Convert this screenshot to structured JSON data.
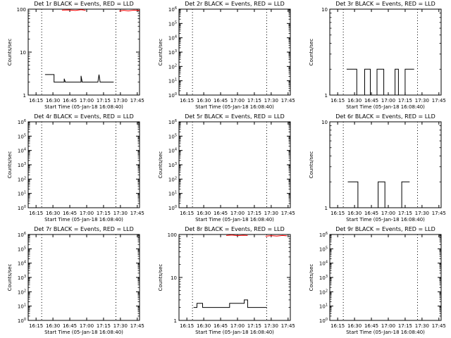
{
  "colors": {
    "events": "#000000",
    "lld": "#ff0000",
    "axes": "#000000"
  },
  "chart_data": [
    {
      "id": "det1",
      "type": "line",
      "title": "Det 1r BLACK = Events, RED = LLD",
      "xlabel": "Start Time (05-Jan-18 16:08:40)",
      "ylabel": "Counts/sec",
      "yscale": "log",
      "ylim": [
        1,
        100
      ],
      "xlim": [
        "16:08",
        "17:47"
      ],
      "yticks": [
        {
          "v": 1,
          "label": "1"
        },
        {
          "v": 10,
          "label": "10"
        },
        {
          "v": 100,
          "label": "100"
        }
      ],
      "xticks": [
        "16:15",
        "16:30",
        "16:45",
        "17:00",
        "17:15",
        "17:30",
        "17:45"
      ],
      "dotted_lines": [
        "16:20",
        "17:26"
      ],
      "series": [
        {
          "color": "black",
          "points": [
            [
              "16:23",
              3
            ],
            [
              "16:31",
              3
            ],
            [
              "16:31",
              2
            ],
            [
              "16:40",
              2
            ],
            [
              "16:40",
              2.4
            ],
            [
              "16:41",
              2
            ],
            [
              "16:55",
              2
            ],
            [
              "16:55",
              2.8
            ],
            [
              "16:56",
              2
            ],
            [
              "17:10",
              2
            ],
            [
              "17:11",
              3
            ],
            [
              "17:12",
              2
            ],
            [
              "17:24",
              2
            ]
          ]
        },
        {
          "color": "red",
          "points": [
            [
              "16:38",
              95
            ],
            [
              "16:44",
              96
            ],
            [
              "16:50",
              93
            ],
            [
              "16:55",
              97
            ],
            [
              "16:59",
              94
            ]
          ]
        },
        {
          "color": "red",
          "points": [
            [
              "17:29",
              90
            ],
            [
              "17:33",
              94
            ],
            [
              "17:37",
              91
            ],
            [
              "17:42",
              95
            ],
            [
              "17:47",
              93
            ]
          ]
        }
      ]
    },
    {
      "id": "det2",
      "type": "line",
      "title": "Det 2r BLACK = Events, RED = LLD",
      "xlabel": "Start Time (05-Jan-18 16:08:40)",
      "ylabel": "Counts/sec",
      "yscale": "log",
      "ylim": [
        1,
        1000000
      ],
      "xlim": [
        "16:08",
        "17:47"
      ],
      "yticks": [
        {
          "v": 1,
          "label": "10^0"
        },
        {
          "v": 10,
          "label": "10^1"
        },
        {
          "v": 100,
          "label": "10^2"
        },
        {
          "v": 1000,
          "label": "10^3"
        },
        {
          "v": 10000,
          "label": "10^4"
        },
        {
          "v": 100000,
          "label": "10^5"
        },
        {
          "v": 1000000,
          "label": "10^6"
        }
      ],
      "xticks": [
        "16:15",
        "16:30",
        "16:45",
        "17:00",
        "17:15",
        "17:30",
        "17:45"
      ],
      "dotted_lines": [
        "16:20",
        "17:26"
      ],
      "series": []
    },
    {
      "id": "det3",
      "type": "line",
      "title": "Det 3r BLACK = Events, RED = LLD",
      "xlabel": "Start Time (05-Jan-18 16:08:40)",
      "ylabel": "Counts/sec",
      "yscale": "log",
      "ylim": [
        1,
        10
      ],
      "xlim": [
        "16:08",
        "17:47"
      ],
      "yticks": [
        {
          "v": 1,
          "label": "1"
        },
        {
          "v": 10,
          "label": "10"
        }
      ],
      "xticks": [
        "16:15",
        "16:30",
        "16:45",
        "17:00",
        "17:15",
        "17:30",
        "17:45"
      ],
      "dotted_lines": [
        "16:20",
        "17:26"
      ],
      "series": [
        {
          "color": "black",
          "points": [
            [
              "16:23",
              2
            ],
            [
              "16:32",
              2
            ],
            [
              "16:32",
              1
            ],
            [
              "16:39",
              1
            ],
            [
              "16:39",
              2
            ],
            [
              "16:44",
              2
            ],
            [
              "16:44",
              1
            ],
            [
              "16:50",
              1
            ],
            [
              "16:50",
              2
            ],
            [
              "16:56",
              2
            ],
            [
              "16:56",
              1
            ],
            [
              "17:06",
              1
            ],
            [
              "17:06",
              2
            ],
            [
              "17:09",
              2
            ],
            [
              "17:09",
              1
            ],
            [
              "17:15",
              1
            ],
            [
              "17:15",
              2
            ],
            [
              "17:23",
              2
            ]
          ]
        }
      ]
    },
    {
      "id": "det4",
      "type": "line",
      "title": "Det 4r BLACK = Events, RED = LLD",
      "xlabel": "Start Time (05-Jan-18 16:08:40)",
      "ylabel": "Counts/sec",
      "yscale": "log",
      "ylim": [
        1,
        1000000
      ],
      "xlim": [
        "16:08",
        "17:47"
      ],
      "yticks": [
        {
          "v": 1,
          "label": "10^0"
        },
        {
          "v": 10,
          "label": "10^1"
        },
        {
          "v": 100,
          "label": "10^2"
        },
        {
          "v": 1000,
          "label": "10^3"
        },
        {
          "v": 10000,
          "label": "10^4"
        },
        {
          "v": 100000,
          "label": "10^5"
        },
        {
          "v": 1000000,
          "label": "10^6"
        }
      ],
      "xticks": [
        "16:15",
        "16:30",
        "16:45",
        "17:00",
        "17:15",
        "17:30",
        "17:45"
      ],
      "dotted_lines": [
        "16:20",
        "17:26"
      ],
      "series": []
    },
    {
      "id": "det5",
      "type": "line",
      "title": "Det 5r BLACK = Events, RED = LLD",
      "xlabel": "Start Time (05-Jan-18 16:08:40)",
      "ylabel": "Counts/sec",
      "yscale": "log",
      "ylim": [
        1,
        1000000
      ],
      "xlim": [
        "16:08",
        "17:47"
      ],
      "yticks": [
        {
          "v": 1,
          "label": "10^0"
        },
        {
          "v": 10,
          "label": "10^1"
        },
        {
          "v": 100,
          "label": "10^2"
        },
        {
          "v": 1000,
          "label": "10^3"
        },
        {
          "v": 10000,
          "label": "10^4"
        },
        {
          "v": 100000,
          "label": "10^5"
        },
        {
          "v": 1000000,
          "label": "10^6"
        }
      ],
      "xticks": [
        "16:15",
        "16:30",
        "16:45",
        "17:00",
        "17:15",
        "17:30",
        "17:45"
      ],
      "dotted_lines": [
        "16:20",
        "17:26"
      ],
      "series": []
    },
    {
      "id": "det6",
      "type": "line",
      "title": "Det 6r BLACK = Events, RED = LLD",
      "xlabel": "Start Time (05-Jan-18 16:08:40)",
      "ylabel": "Counts/sec",
      "yscale": "log",
      "ylim": [
        1,
        10
      ],
      "xlim": [
        "16:08",
        "17:47"
      ],
      "yticks": [
        {
          "v": 1,
          "label": "1"
        },
        {
          "v": 10,
          "label": "10"
        }
      ],
      "xticks": [
        "16:15",
        "16:30",
        "16:45",
        "17:00",
        "17:15",
        "17:30",
        "17:45"
      ],
      "dotted_lines": [
        "16:20",
        "17:26"
      ],
      "series": [
        {
          "color": "black",
          "points": [
            [
              "16:24",
              2
            ],
            [
              "16:33",
              2
            ],
            [
              "16:33",
              1
            ],
            [
              "16:51",
              1
            ],
            [
              "16:51",
              2
            ],
            [
              "16:57",
              2
            ],
            [
              "16:57",
              1
            ],
            [
              "17:12",
              1
            ],
            [
              "17:12",
              2
            ],
            [
              "17:19",
              2
            ]
          ]
        }
      ]
    },
    {
      "id": "det7",
      "type": "line",
      "title": "Det 7r BLACK = Events, RED = LLD",
      "xlabel": "Start Time (05-Jan-18 16:08:40)",
      "ylabel": "Counts/sec",
      "yscale": "log",
      "ylim": [
        1,
        1000000
      ],
      "xlim": [
        "16:08",
        "17:47"
      ],
      "yticks": [
        {
          "v": 1,
          "label": "10^0"
        },
        {
          "v": 10,
          "label": "10^1"
        },
        {
          "v": 100,
          "label": "10^2"
        },
        {
          "v": 1000,
          "label": "10^3"
        },
        {
          "v": 10000,
          "label": "10^4"
        },
        {
          "v": 100000,
          "label": "10^5"
        },
        {
          "v": 1000000,
          "label": "10^6"
        }
      ],
      "xticks": [
        "16:15",
        "16:30",
        "16:45",
        "17:00",
        "17:15",
        "17:30",
        "17:45"
      ],
      "dotted_lines": [
        "16:20",
        "17:26"
      ],
      "series": []
    },
    {
      "id": "det8",
      "type": "line",
      "title": "Det 8r BLACK = Events, RED = LLD",
      "xlabel": "Start Time (05-Jan-18 16:08:40)",
      "ylabel": "Counts/sec",
      "yscale": "log",
      "ylim": [
        1,
        100
      ],
      "xlim": [
        "16:08",
        "17:47"
      ],
      "yticks": [
        {
          "v": 1,
          "label": "1"
        },
        {
          "v": 10,
          "label": "10"
        },
        {
          "v": 100,
          "label": "100"
        }
      ],
      "xticks": [
        "16:15",
        "16:30",
        "16:45",
        "17:00",
        "17:15",
        "17:30",
        "17:45"
      ],
      "dotted_lines": [
        "16:20",
        "17:26"
      ],
      "series": [
        {
          "color": "black",
          "points": [
            [
              "16:21",
              2
            ],
            [
              "16:24",
              2
            ],
            [
              "16:24",
              2.5
            ],
            [
              "16:29",
              2.5
            ],
            [
              "16:29",
              2
            ],
            [
              "16:53",
              2
            ],
            [
              "16:53",
              2.5
            ],
            [
              "17:06",
              2.5
            ],
            [
              "17:06",
              3
            ],
            [
              "17:09",
              3
            ],
            [
              "17:09",
              2
            ],
            [
              "17:26",
              2
            ]
          ]
        },
        {
          "color": "red",
          "points": [
            [
              "16:50",
              95
            ],
            [
              "16:55",
              97
            ],
            [
              "17:00",
              94
            ],
            [
              "17:05",
              96
            ],
            [
              "17:09",
              95
            ]
          ]
        },
        {
          "color": "red",
          "points": [
            [
              "17:25",
              91
            ],
            [
              "17:30",
              94
            ],
            [
              "17:35",
              92
            ],
            [
              "17:40",
              95
            ],
            [
              "17:44",
              93
            ]
          ]
        }
      ]
    },
    {
      "id": "det9",
      "type": "line",
      "title": "Det 9r BLACK = Events, RED = LLD",
      "xlabel": "Start Time (05-Jan-18 16:08:40)",
      "ylabel": "Counts/sec",
      "yscale": "log",
      "ylim": [
        1,
        1000000
      ],
      "xlim": [
        "16:08",
        "17:47"
      ],
      "yticks": [
        {
          "v": 1,
          "label": "10^0"
        },
        {
          "v": 10,
          "label": "10^1"
        },
        {
          "v": 100,
          "label": "10^2"
        },
        {
          "v": 1000,
          "label": "10^3"
        },
        {
          "v": 10000,
          "label": "10^4"
        },
        {
          "v": 100000,
          "label": "10^5"
        },
        {
          "v": 1000000,
          "label": "10^6"
        }
      ],
      "xticks": [
        "16:15",
        "16:30",
        "16:45",
        "17:00",
        "17:15",
        "17:30",
        "17:45"
      ],
      "dotted_lines": [
        "16:20",
        "17:26"
      ],
      "series": []
    }
  ]
}
